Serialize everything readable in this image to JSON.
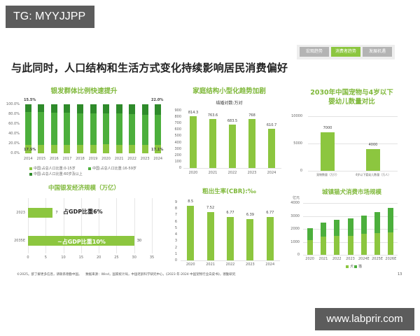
{
  "badge": "TG: MYYJJPP",
  "watermark": "www.labprir.com",
  "nav": {
    "tabs": [
      {
        "label": "宏观趋势"
      },
      {
        "label": "消费者趋势",
        "active": true
      },
      {
        "label": "发展机遇"
      }
    ]
  },
  "page_title": "与此同时，人口结构和生活方式变化持续影响居民消费偏好",
  "footer": {
    "left": "©2025。欲了解更多信息，请联系德勤中国。",
    "source": "数据来源：Wind，国家统计局，中国老龄科学研究中心，《2023 年-2024 中国宠物行业白皮书》，德勤研究",
    "page": "13"
  },
  "colors": {
    "light_green": "#8cc63f",
    "mid_green": "#4fae3a",
    "dark_green": "#2e8b2a",
    "title_green": "#7fb83a",
    "grey_bg": "#5c5c5c"
  },
  "chart_data": [
    {
      "id": "silver",
      "type": "bar",
      "stacked": true,
      "title": "银发群体比例快速提升",
      "categories": [
        "2014",
        "2015",
        "2016",
        "2017",
        "2018",
        "2019",
        "2020",
        "2021",
        "2022",
        "2023",
        "2024"
      ],
      "series": [
        {
          "name": "中国:占总人口比重:0-15岁",
          "values": [
            17.5,
            17.6,
            17.7,
            17.8,
            17.8,
            17.8,
            18.0,
            17.8,
            17.5,
            17.3,
            17.1
          ]
        },
        {
          "name": "中国:占总人口比重:16-59岁",
          "values": [
            67.0,
            66.3,
            65.6,
            64.9,
            64.3,
            63.7,
            63.3,
            63.3,
            62.7,
            61.9,
            60.9
          ]
        },
        {
          "name": "中国:占总人口比重:60岁及以上",
          "values": [
            15.5,
            16.1,
            16.7,
            17.3,
            17.9,
            18.5,
            18.7,
            18.9,
            19.8,
            20.8,
            22.0
          ]
        }
      ],
      "annotations": {
        "top_left": "15.5%",
        "top_right": "22.0%",
        "bottom_left": "17.5%",
        "bottom_right": "17.1%"
      },
      "yticks": [
        "100.0%",
        "80.0%",
        "60.0%",
        "40.0%",
        "20.0%",
        "0.0%"
      ],
      "ylim": [
        0,
        100
      ]
    },
    {
      "id": "marriage",
      "type": "bar",
      "title": "家庭结构小型化趋势加剧",
      "subtitle": "结婚对数:万对",
      "categories": [
        "2020",
        "2021",
        "2022",
        "2023",
        "2024"
      ],
      "values": [
        814.3,
        763.6,
        683.5,
        768,
        610.7
      ],
      "labels": [
        "814.3",
        "763.6",
        "683.5",
        "768",
        "610.7"
      ],
      "yticks": [
        "900",
        "800",
        "700",
        "600",
        "500",
        "400",
        "300",
        "200",
        "100",
        "0"
      ],
      "ylim": [
        0,
        900
      ]
    },
    {
      "id": "pets",
      "type": "bar",
      "title": "2030年中国宠物与4岁以下婴幼儿数量对比",
      "title_line1": "2030年中国宠物与4岁以下",
      "title_line2": "婴幼儿数量对比",
      "categories": [
        "宠物数量（万只）",
        "4岁以下婴幼儿数量（万人）"
      ],
      "values": [
        7000,
        4000
      ],
      "labels": [
        "7000",
        "4000"
      ],
      "yticks": [
        "10000",
        "5000",
        "0"
      ],
      "ylim": [
        0,
        10000
      ]
    },
    {
      "id": "silver_economy",
      "type": "bar",
      "orientation": "horizontal",
      "title": "中国银发经济规模（万亿）",
      "categories": [
        "2023",
        "2035E"
      ],
      "values": [
        7,
        30
      ],
      "labels": [
        "7",
        "30"
      ],
      "annotations": [
        "占GDP比重6%",
        "~占GDP比重10%"
      ],
      "xticks": [
        "0",
        "5",
        "10",
        "15",
        "20",
        "25",
        "30",
        "35"
      ],
      "xlim": [
        0,
        35
      ]
    },
    {
      "id": "birth_rate",
      "type": "bar",
      "title": "粗出生率(CBR):‰",
      "categories": [
        "2020",
        "2021",
        "2022",
        "2023",
        "2024"
      ],
      "values": [
        8.5,
        7.52,
        6.77,
        6.39,
        6.77
      ],
      "labels": [
        "8.5",
        "7.52",
        "6.77",
        "6.39",
        "6.77"
      ],
      "yticks": [
        "9",
        "8",
        "7",
        "6",
        "5",
        "4",
        "3",
        "2",
        "1",
        "0"
      ],
      "ylim": [
        0,
        9
      ]
    },
    {
      "id": "pet_market",
      "type": "bar",
      "stacked": true,
      "title": "城镇猫犬消费市场规模",
      "ylabel": "亿元",
      "categories": [
        "2020",
        "2021",
        "2022",
        "2023",
        "2024E",
        "2025E",
        "2026E"
      ],
      "series": [
        {
          "name": "犬",
          "values": [
            1150,
            1430,
            1470,
            1480,
            1600,
            1650,
            1750
          ]
        },
        {
          "name": "猫",
          "values": [
            910,
            1060,
            1230,
            1320,
            1420,
            1650,
            1850
          ]
        }
      ],
      "yticks": [
        "4000",
        "3000",
        "2000",
        "1000",
        "0"
      ],
      "ylim": [
        0,
        4000
      ]
    }
  ]
}
